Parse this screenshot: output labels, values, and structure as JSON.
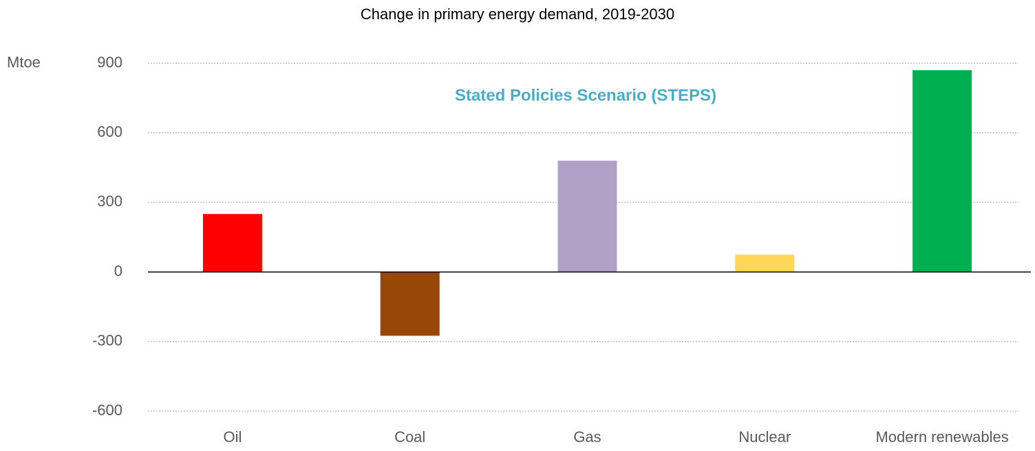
{
  "chart_data": {
    "type": "bar",
    "title": "Change in primary energy demand, 2019-2030",
    "y_label": "Mtoe",
    "annotation": "Stated Policies Scenario (STEPS)",
    "categories": [
      "Oil",
      "Coal",
      "Gas",
      "Nuclear",
      "Modern renewables"
    ],
    "values": [
      250,
      -275,
      480,
      75,
      870
    ],
    "colors": [
      "#ff0000",
      "#974706",
      "#b1a0c7",
      "#ffd758",
      "#00b050"
    ],
    "ylim": [
      -600,
      900
    ],
    "yticks": [
      -600,
      -300,
      0,
      300,
      600,
      900
    ],
    "grid": true
  }
}
